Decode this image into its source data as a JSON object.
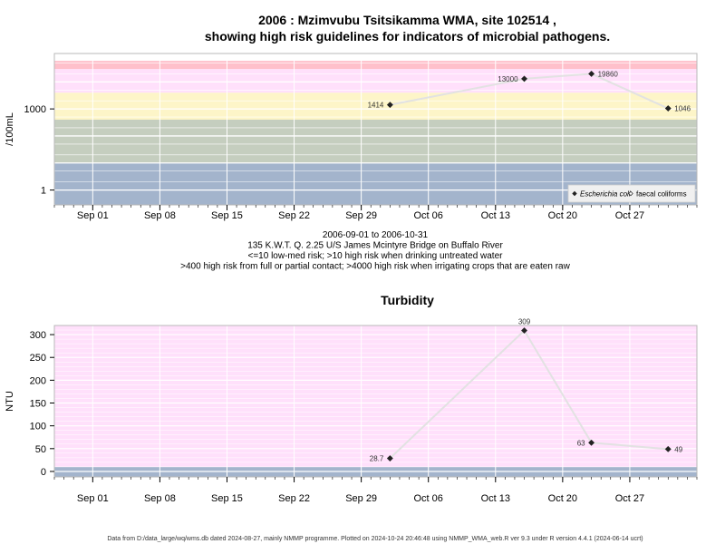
{
  "chart_data": [
    {
      "type": "scatter",
      "title": [
        "2006 : Mzimvubu Tsitsikamma WMA, site 102514 ,",
        "showing high risk guidelines for indicators of microbial pathogens."
      ],
      "ylabel": "/100mL",
      "y_scale": "log",
      "y_ticks": [
        1,
        1000
      ],
      "y_tick_labels": [
        "1",
        "1000"
      ],
      "xlim": [
        "2006-08-28",
        "2006-11-03"
      ],
      "x_ticks": [
        "2006-09-01",
        "2006-09-08",
        "2006-09-15",
        "2006-09-22",
        "2006-09-29",
        "2006-10-06",
        "2006-10-13",
        "2006-10-20",
        "2006-10-27"
      ],
      "x_tick_labels": [
        "Sep 01",
        "Sep 08",
        "Sep 15",
        "Sep 22",
        "Sep 29",
        "Oct 06",
        "Oct 13",
        "Oct 20",
        "Oct 27"
      ],
      "grid": true,
      "bands": [
        {
          "from": 0.01,
          "to": 10,
          "color": "#a3b4cc"
        },
        {
          "from": 10,
          "to": 400,
          "color": "#c5cebf"
        },
        {
          "from": 400,
          "to": 4000,
          "color": "#fdf5c8"
        },
        {
          "from": 4000,
          "to": 30000,
          "color": "#ffe0fb"
        },
        {
          "from": 30000,
          "to": 60000,
          "color": "#ffc0cb"
        }
      ],
      "series": [
        {
          "name": "Escherichia coli",
          "marker": "filled-diamond",
          "points": [
            {
              "x": "2006-10-02",
              "y": 1414,
              "label": "1414"
            },
            {
              "x": "2006-10-16",
              "y": 13000,
              "label": "13000"
            },
            {
              "x": "2006-10-23",
              "y": 19860,
              "label": "19860"
            },
            {
              "x": "2006-10-31",
              "y": 1046,
              "label": "1046"
            }
          ]
        },
        {
          "name": "faecal coliforms",
          "marker": "open-diamond",
          "points": []
        }
      ],
      "legend_position": "bottom-right",
      "caption_lines": [
        "2006-09-01 to 2006-10-31",
        "135 K.W.T. Q. 2.25 U/S James Mcintyre Bridge on Buffalo River",
        "<=10 low-med risk; >10 high risk when drinking untreated water",
        ">400 high risk from full or partial contact; >4000 high risk when irrigating crops that are eaten raw"
      ]
    },
    {
      "type": "scatter",
      "title": "Turbidity",
      "ylabel": "NTU",
      "ylim": [
        -12,
        320
      ],
      "y_ticks": [
        0,
        50,
        100,
        150,
        200,
        250,
        300
      ],
      "y_tick_labels": [
        "0",
        "50",
        "100",
        "150",
        "200",
        "250",
        "300"
      ],
      "xlim": [
        "2006-08-28",
        "2006-11-03"
      ],
      "x_ticks": [
        "2006-09-01",
        "2006-09-08",
        "2006-09-15",
        "2006-09-22",
        "2006-09-29",
        "2006-10-06",
        "2006-10-13",
        "2006-10-20",
        "2006-10-27"
      ],
      "x_tick_labels": [
        "Sep 01",
        "Sep 08",
        "Sep 15",
        "Sep 22",
        "Sep 29",
        "Oct 06",
        "Oct 13",
        "Oct 20",
        "Oct 27"
      ],
      "grid": true,
      "bands": [
        {
          "from": -12,
          "to": 10,
          "color": "#a3b4cc"
        },
        {
          "from": 10,
          "to": 320,
          "color": "#ffe0fb"
        }
      ],
      "series": [
        {
          "name": "",
          "marker": "filled-diamond",
          "points": [
            {
              "x": "2006-10-02",
              "y": 28.7,
              "label": "28.7"
            },
            {
              "x": "2006-10-16",
              "y": 309,
              "label": "309"
            },
            {
              "x": "2006-10-23",
              "y": 63,
              "label": "63"
            },
            {
              "x": "2006-10-31",
              "y": 49,
              "label": "49"
            }
          ]
        }
      ]
    }
  ],
  "footer": "Data from D:/data_large/wq/wms.db dated 2024-08-27, mainly NMMP programme. Plotted on 2024-10-24 20:46:48 using NMMP_WMA_web.R ver 9.3 under R version 4.4.1 (2024-06-14 ucrt)"
}
